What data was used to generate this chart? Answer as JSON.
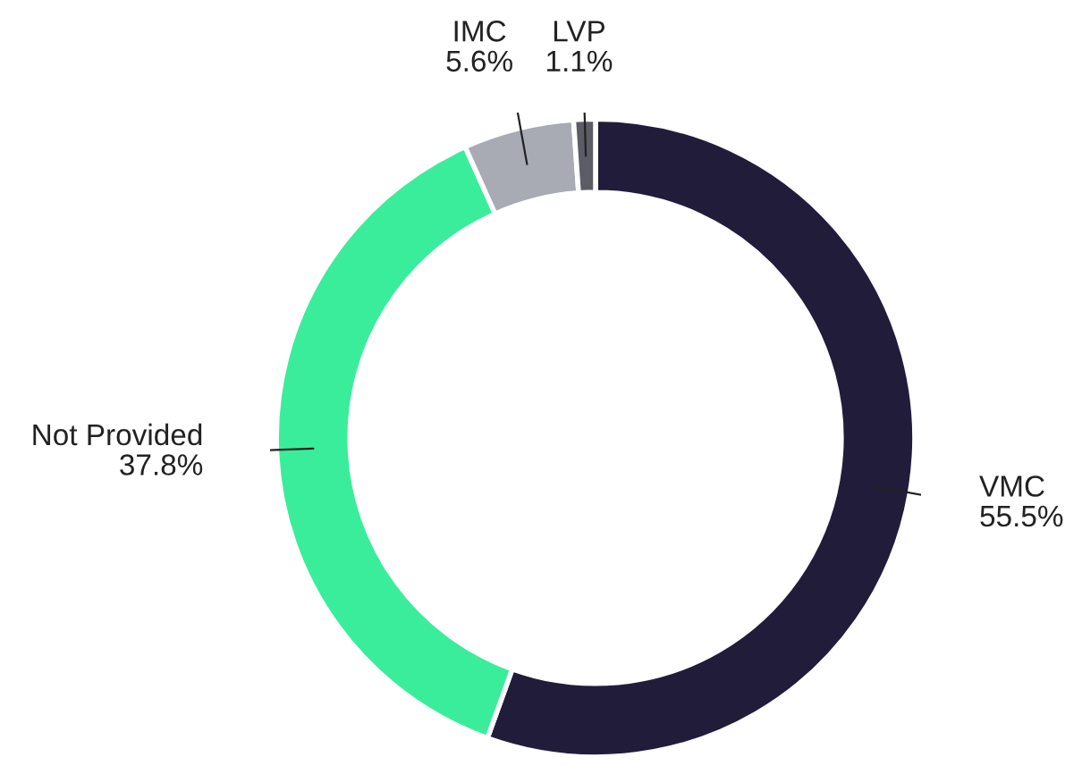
{
  "chart_data": {
    "type": "donut",
    "categories": [
      "VMC",
      "Not Provided",
      "IMC",
      "LVP"
    ],
    "values": [
      55.5,
      37.8,
      5.6,
      1.1
    ],
    "value_labels": [
      "55.5%",
      "37.8%",
      "5.6%",
      "1.1%"
    ],
    "colors": [
      "#201c3a",
      "#3aed9a",
      "#a8aab4",
      "#5b5c66"
    ]
  }
}
